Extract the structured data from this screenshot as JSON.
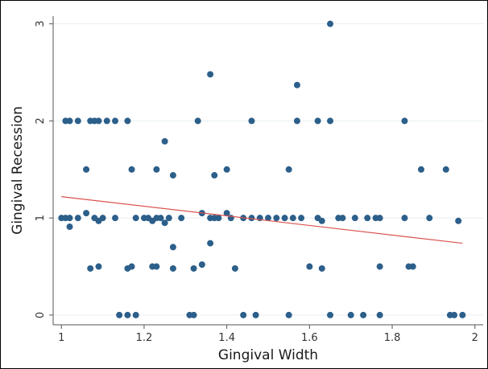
{
  "chart_data": {
    "type": "scatter",
    "xlabel": "Gingival Width",
    "ylabel": "Gingival Recession",
    "xlim": [
      0.98,
      2.02
    ],
    "ylim": [
      -0.1,
      3.08
    ],
    "xticks": [
      1,
      1.2,
      1.4,
      1.6,
      1.8,
      2
    ],
    "xtick_labels": [
      "1",
      "1.2",
      "1.4",
      "1.6",
      "1.8",
      "2"
    ],
    "yticks": [
      0,
      1,
      2,
      3
    ],
    "ytick_labels": [
      "0",
      "1",
      "2",
      "3"
    ],
    "grid": true,
    "marker_color": "#2c5f8a",
    "fit_color": "#d9534f",
    "grid_color": "#e8eef2",
    "fit_line": {
      "x": [
        1.0,
        1.97
      ],
      "y": [
        1.22,
        0.74
      ]
    },
    "points": [
      {
        "x": 1.65,
        "y": 3.0
      },
      {
        "x": 1.36,
        "y": 2.48
      },
      {
        "x": 1.57,
        "y": 2.37
      },
      {
        "x": 1.01,
        "y": 2.0
      },
      {
        "x": 1.02,
        "y": 2.0
      },
      {
        "x": 1.04,
        "y": 2.0
      },
      {
        "x": 1.07,
        "y": 2.0
      },
      {
        "x": 1.08,
        "y": 2.0
      },
      {
        "x": 1.09,
        "y": 2.0
      },
      {
        "x": 1.11,
        "y": 2.0
      },
      {
        "x": 1.13,
        "y": 2.0
      },
      {
        "x": 1.16,
        "y": 2.0
      },
      {
        "x": 1.33,
        "y": 2.0
      },
      {
        "x": 1.46,
        "y": 2.0
      },
      {
        "x": 1.57,
        "y": 2.0
      },
      {
        "x": 1.62,
        "y": 2.0
      },
      {
        "x": 1.65,
        "y": 2.0
      },
      {
        "x": 1.83,
        "y": 2.0
      },
      {
        "x": 1.25,
        "y": 1.79
      },
      {
        "x": 1.06,
        "y": 1.5
      },
      {
        "x": 1.17,
        "y": 1.5
      },
      {
        "x": 1.23,
        "y": 1.5
      },
      {
        "x": 1.4,
        "y": 1.5
      },
      {
        "x": 1.55,
        "y": 1.5
      },
      {
        "x": 1.87,
        "y": 1.5
      },
      {
        "x": 1.93,
        "y": 1.5
      },
      {
        "x": 1.27,
        "y": 1.44
      },
      {
        "x": 1.37,
        "y": 1.44
      },
      {
        "x": 1.0,
        "y": 1.0
      },
      {
        "x": 1.01,
        "y": 1.0
      },
      {
        "x": 1.02,
        "y": 1.0
      },
      {
        "x": 1.04,
        "y": 1.0
      },
      {
        "x": 1.06,
        "y": 1.05
      },
      {
        "x": 1.08,
        "y": 1.0
      },
      {
        "x": 1.09,
        "y": 0.97
      },
      {
        "x": 1.1,
        "y": 1.0
      },
      {
        "x": 1.13,
        "y": 1.0
      },
      {
        "x": 1.18,
        "y": 1.0
      },
      {
        "x": 1.2,
        "y": 1.0
      },
      {
        "x": 1.21,
        "y": 1.0
      },
      {
        "x": 1.22,
        "y": 0.97
      },
      {
        "x": 1.23,
        "y": 1.0
      },
      {
        "x": 1.24,
        "y": 1.0
      },
      {
        "x": 1.26,
        "y": 1.0
      },
      {
        "x": 1.25,
        "y": 0.95
      },
      {
        "x": 1.29,
        "y": 1.0
      },
      {
        "x": 1.34,
        "y": 1.05
      },
      {
        "x": 1.36,
        "y": 1.0
      },
      {
        "x": 1.37,
        "y": 1.0
      },
      {
        "x": 1.38,
        "y": 1.0
      },
      {
        "x": 1.4,
        "y": 1.05
      },
      {
        "x": 1.41,
        "y": 1.0
      },
      {
        "x": 1.44,
        "y": 1.0
      },
      {
        "x": 1.46,
        "y": 1.0
      },
      {
        "x": 1.48,
        "y": 1.0
      },
      {
        "x": 1.5,
        "y": 1.0
      },
      {
        "x": 1.52,
        "y": 1.0
      },
      {
        "x": 1.54,
        "y": 1.0
      },
      {
        "x": 1.56,
        "y": 1.0
      },
      {
        "x": 1.58,
        "y": 1.0
      },
      {
        "x": 1.62,
        "y": 1.0
      },
      {
        "x": 1.63,
        "y": 0.97
      },
      {
        "x": 1.67,
        "y": 1.0
      },
      {
        "x": 1.68,
        "y": 1.0
      },
      {
        "x": 1.71,
        "y": 1.0
      },
      {
        "x": 1.74,
        "y": 1.0
      },
      {
        "x": 1.76,
        "y": 1.0
      },
      {
        "x": 1.77,
        "y": 1.0
      },
      {
        "x": 1.83,
        "y": 1.0
      },
      {
        "x": 1.89,
        "y": 1.0
      },
      {
        "x": 1.96,
        "y": 0.97
      },
      {
        "x": 1.02,
        "y": 0.91
      },
      {
        "x": 1.36,
        "y": 0.74
      },
      {
        "x": 1.27,
        "y": 0.7
      },
      {
        "x": 1.07,
        "y": 0.48
      },
      {
        "x": 1.09,
        "y": 0.5
      },
      {
        "x": 1.16,
        "y": 0.48
      },
      {
        "x": 1.17,
        "y": 0.5
      },
      {
        "x": 1.22,
        "y": 0.5
      },
      {
        "x": 1.23,
        "y": 0.5
      },
      {
        "x": 1.27,
        "y": 0.48
      },
      {
        "x": 1.32,
        "y": 0.48
      },
      {
        "x": 1.34,
        "y": 0.52
      },
      {
        "x": 1.42,
        "y": 0.48
      },
      {
        "x": 1.6,
        "y": 0.5
      },
      {
        "x": 1.63,
        "y": 0.48
      },
      {
        "x": 1.77,
        "y": 0.5
      },
      {
        "x": 1.84,
        "y": 0.5
      },
      {
        "x": 1.85,
        "y": 0.5
      },
      {
        "x": 1.14,
        "y": 0.0
      },
      {
        "x": 1.16,
        "y": 0.0
      },
      {
        "x": 1.18,
        "y": 0.0
      },
      {
        "x": 1.31,
        "y": 0.0
      },
      {
        "x": 1.32,
        "y": 0.0
      },
      {
        "x": 1.44,
        "y": 0.0
      },
      {
        "x": 1.47,
        "y": 0.0
      },
      {
        "x": 1.55,
        "y": 0.0
      },
      {
        "x": 1.65,
        "y": 0.0
      },
      {
        "x": 1.7,
        "y": 0.0
      },
      {
        "x": 1.73,
        "y": 0.0
      },
      {
        "x": 1.77,
        "y": 0.0
      },
      {
        "x": 1.94,
        "y": 0.0
      },
      {
        "x": 1.95,
        "y": 0.0
      },
      {
        "x": 1.97,
        "y": 0.0
      }
    ]
  }
}
